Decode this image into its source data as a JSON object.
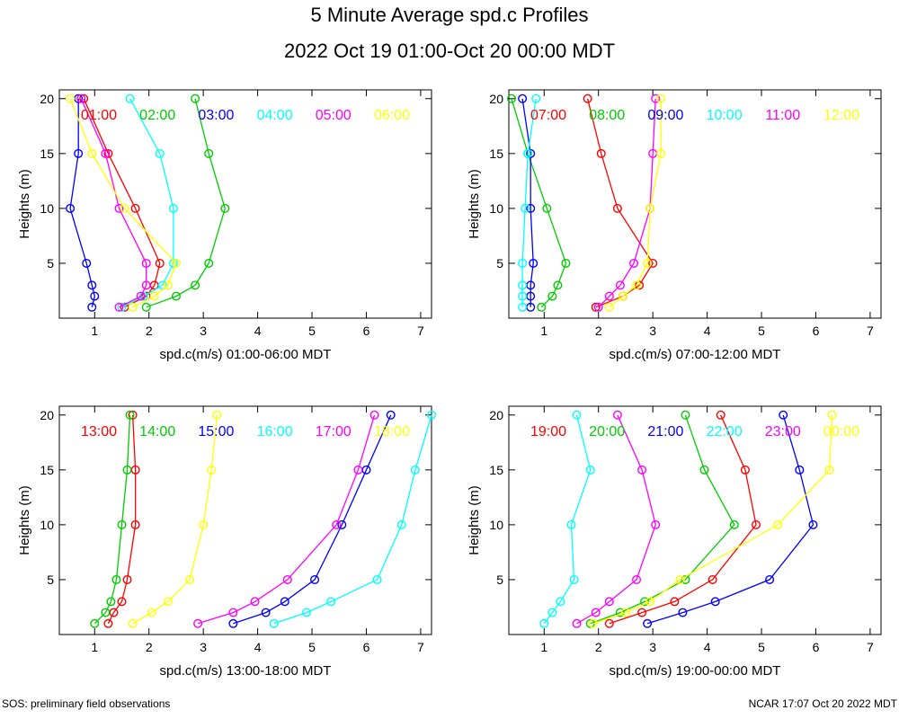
{
  "title": "5 Minute Average spd.c Profiles",
  "subtitle": "2022 Oct 19 01:00-Oct 20 00:00 MDT",
  "footer_left": "SOS: preliminary field observations",
  "footer_right": "NCAR 17:07 Oct 20 2022 MDT",
  "chart_data": [
    {
      "type": "line",
      "xlabel": "spd.c(m/s) 01:00-06:00 MDT",
      "ylabel": "Heights (m)",
      "xlim": [
        0.35,
        7.2
      ],
      "ylim": [
        0,
        20.8
      ],
      "xticks": [
        "1",
        "2",
        "3",
        "4",
        "5",
        "6",
        "7"
      ],
      "yticks": [
        "5",
        "10",
        "15",
        "20"
      ],
      "heights": [
        1,
        2,
        3,
        5,
        10,
        15,
        20
      ],
      "series": [
        {
          "name": "01:00",
          "color": "#ff0000",
          "values": [
            1.55,
            1.95,
            2.1,
            2.2,
            1.75,
            1.25,
            0.8
          ]
        },
        {
          "name": "02:00",
          "color": "#00cc00",
          "values": [
            1.95,
            2.5,
            2.85,
            3.1,
            3.4,
            3.1,
            2.85
          ]
        },
        {
          "name": "03:00",
          "color": "#0000ff",
          "values": [
            0.95,
            1.0,
            0.95,
            0.85,
            0.55,
            0.7,
            0.7
          ]
        },
        {
          "name": "04:00",
          "color": "#00ffff",
          "values": [
            1.5,
            1.9,
            2.25,
            2.45,
            2.45,
            2.2,
            1.65
          ]
        },
        {
          "name": "05:00",
          "color": "#ff00ff",
          "values": [
            1.45,
            1.85,
            1.95,
            1.95,
            1.45,
            1.2,
            0.75
          ]
        },
        {
          "name": "06:00",
          "color": "#ffff00",
          "values": [
            1.7,
            2.1,
            2.35,
            2.5,
            1.55,
            0.95,
            0.55
          ]
        }
      ]
    },
    {
      "type": "line",
      "xlabel": "spd.c(m/s) 07:00-12:00 MDT",
      "ylabel": "Heights (m)",
      "xlim": [
        0.35,
        7.2
      ],
      "ylim": [
        0,
        20.8
      ],
      "xticks": [
        "1",
        "2",
        "3",
        "4",
        "5",
        "6",
        "7"
      ],
      "yticks": [
        "5",
        "10",
        "15",
        "20"
      ],
      "heights": [
        1,
        2,
        3,
        5,
        10,
        15,
        20
      ],
      "series": [
        {
          "name": "07:00",
          "color": "#ff0000",
          "values": [
            1.95,
            2.45,
            2.75,
            3.0,
            2.35,
            2.05,
            1.8
          ]
        },
        {
          "name": "08:00",
          "color": "#00cc00",
          "values": [
            0.95,
            1.15,
            1.25,
            1.4,
            1.05,
            0.7,
            0.4
          ]
        },
        {
          "name": "09:00",
          "color": "#0000ff",
          "values": [
            0.75,
            0.75,
            0.75,
            0.8,
            0.75,
            0.75,
            0.6
          ]
        },
        {
          "name": "10:00",
          "color": "#00ffff",
          "values": [
            0.6,
            0.6,
            0.6,
            0.6,
            0.65,
            0.7,
            0.85
          ]
        },
        {
          "name": "11:00",
          "color": "#ff00ff",
          "values": [
            2.0,
            2.2,
            2.4,
            2.65,
            2.95,
            3.0,
            3.05
          ]
        },
        {
          "name": "12:00",
          "color": "#ffff00",
          "values": [
            2.2,
            2.45,
            2.7,
            2.9,
            2.95,
            3.15,
            3.15
          ]
        }
      ]
    },
    {
      "type": "line",
      "xlabel": "spd.c(m/s) 13:00-18:00 MDT",
      "ylabel": "Heights (m)",
      "xlim": [
        0.35,
        7.2
      ],
      "ylim": [
        0,
        20.8
      ],
      "xticks": [
        "1",
        "2",
        "3",
        "4",
        "5",
        "6",
        "7"
      ],
      "yticks": [
        "5",
        "10",
        "15",
        "20"
      ],
      "heights": [
        1,
        2,
        3,
        5,
        10,
        15,
        20
      ],
      "series": [
        {
          "name": "13:00",
          "color": "#ff0000",
          "values": [
            1.25,
            1.35,
            1.5,
            1.6,
            1.75,
            1.75,
            1.7
          ]
        },
        {
          "name": "14:00",
          "color": "#00cc00",
          "values": [
            1.0,
            1.2,
            1.3,
            1.4,
            1.5,
            1.6,
            1.65
          ]
        },
        {
          "name": "15:00",
          "color": "#0000ff",
          "values": [
            3.55,
            4.15,
            4.5,
            5.05,
            5.55,
            6.0,
            6.45
          ]
        },
        {
          "name": "16:00",
          "color": "#00ffff",
          "values": [
            4.3,
            4.9,
            5.35,
            6.2,
            6.65,
            6.9,
            7.2
          ]
        },
        {
          "name": "17:00",
          "color": "#ff00ff",
          "values": [
            2.9,
            3.55,
            3.95,
            4.55,
            5.45,
            5.85,
            6.15
          ]
        },
        {
          "name": "18:00",
          "color": "#ffff00",
          "values": [
            1.7,
            2.05,
            2.35,
            2.75,
            3.0,
            3.15,
            3.25
          ]
        }
      ]
    },
    {
      "type": "line",
      "xlabel": "spd.c(m/s) 19:00-00:00 MDT",
      "ylabel": "Heights (m)",
      "xlim": [
        0.35,
        7.2
      ],
      "ylim": [
        0,
        20.8
      ],
      "xticks": [
        "1",
        "2",
        "3",
        "4",
        "5",
        "6",
        "7"
      ],
      "yticks": [
        "5",
        "10",
        "15",
        "20"
      ],
      "heights": [
        1,
        2,
        3,
        5,
        10,
        15,
        20
      ],
      "series": [
        {
          "name": "19:00",
          "color": "#ff0000",
          "values": [
            2.2,
            2.8,
            3.4,
            4.1,
            4.9,
            4.7,
            4.25
          ]
        },
        {
          "name": "20:00",
          "color": "#00cc00",
          "values": [
            1.85,
            2.4,
            2.85,
            3.6,
            4.5,
            3.95,
            3.6
          ]
        },
        {
          "name": "21:00",
          "color": "#0000ff",
          "values": [
            2.9,
            3.55,
            4.15,
            5.15,
            5.95,
            5.7,
            5.4
          ]
        },
        {
          "name": "22:00",
          "color": "#00ffff",
          "values": [
            1.0,
            1.15,
            1.3,
            1.55,
            1.5,
            1.85,
            1.6
          ]
        },
        {
          "name": "23:00",
          "color": "#ff00ff",
          "values": [
            1.6,
            1.95,
            2.2,
            2.7,
            3.05,
            2.8,
            2.35
          ]
        },
        {
          "name": "00:00",
          "color": "#ffff00",
          "values": [
            1.9,
            2.5,
            2.95,
            3.5,
            5.3,
            6.25,
            6.3
          ]
        }
      ]
    }
  ]
}
